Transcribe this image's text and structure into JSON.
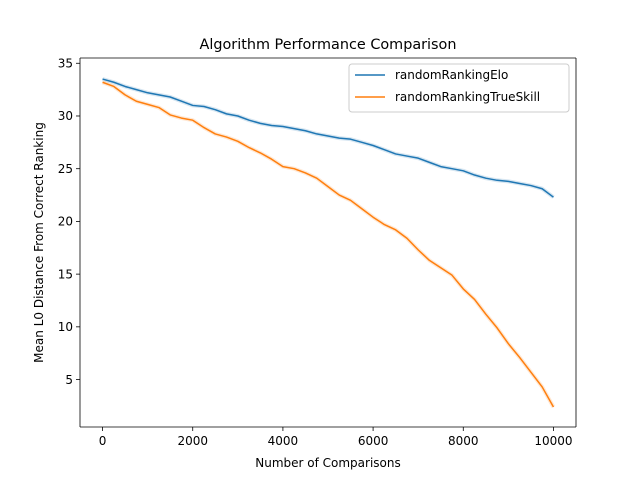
{
  "chart_data": {
    "type": "line",
    "title": "Algorithm Performance Comparison",
    "xlabel": "Number of Comparisons",
    "ylabel": "Mean L0 Distance From Correct Ranking",
    "xlim": [
      -500,
      10500
    ],
    "ylim": [
      0.5,
      35.5
    ],
    "xticks": [
      0,
      2000,
      4000,
      6000,
      8000,
      10000
    ],
    "yticks": [
      5,
      10,
      15,
      20,
      25,
      30,
      35
    ],
    "grid": false,
    "legend_position": "top-right",
    "series": [
      {
        "name": "randomRankingElo",
        "color": "#1f77b4",
        "x": [
          0,
          250,
          500,
          750,
          1000,
          1250,
          1500,
          1750,
          2000,
          2250,
          2500,
          2750,
          3000,
          3250,
          3500,
          3750,
          4000,
          4250,
          4500,
          4750,
          5000,
          5250,
          5500,
          5750,
          6000,
          6250,
          6500,
          6750,
          7000,
          7250,
          7500,
          7750,
          8000,
          8250,
          8500,
          8750,
          9000,
          9250,
          9500,
          9750,
          10000
        ],
        "y": [
          33.5,
          33.2,
          32.8,
          32.5,
          32.2,
          32.0,
          31.8,
          31.4,
          31.0,
          30.9,
          30.6,
          30.2,
          30.0,
          29.6,
          29.3,
          29.1,
          29.0,
          28.8,
          28.6,
          28.3,
          28.1,
          27.9,
          27.8,
          27.5,
          27.2,
          26.8,
          26.4,
          26.2,
          26.0,
          25.6,
          25.2,
          25.0,
          24.8,
          24.4,
          24.1,
          23.9,
          23.8,
          23.6,
          23.4,
          23.1,
          22.3
        ]
      },
      {
        "name": "randomRankingTrueSkill",
        "color": "#ff7f0e",
        "x": [
          0,
          250,
          500,
          750,
          1000,
          1250,
          1500,
          1750,
          2000,
          2250,
          2500,
          2750,
          3000,
          3250,
          3500,
          3750,
          4000,
          4250,
          4500,
          4750,
          5000,
          5250,
          5500,
          5750,
          6000,
          6250,
          6500,
          6750,
          7000,
          7250,
          7500,
          7750,
          8000,
          8250,
          8500,
          8750,
          9000,
          9250,
          9500,
          9750,
          10000
        ],
        "y": [
          33.2,
          32.8,
          32.0,
          31.4,
          31.1,
          30.8,
          30.1,
          29.8,
          29.6,
          28.9,
          28.3,
          28.0,
          27.6,
          27.0,
          26.5,
          25.9,
          25.2,
          25.0,
          24.6,
          24.1,
          23.3,
          22.5,
          22.0,
          21.2,
          20.4,
          19.7,
          19.2,
          18.4,
          17.3,
          16.3,
          15.6,
          14.9,
          13.6,
          12.6,
          11.2,
          9.9,
          8.4,
          7.1,
          5.7,
          4.3,
          2.4
        ]
      }
    ]
  }
}
